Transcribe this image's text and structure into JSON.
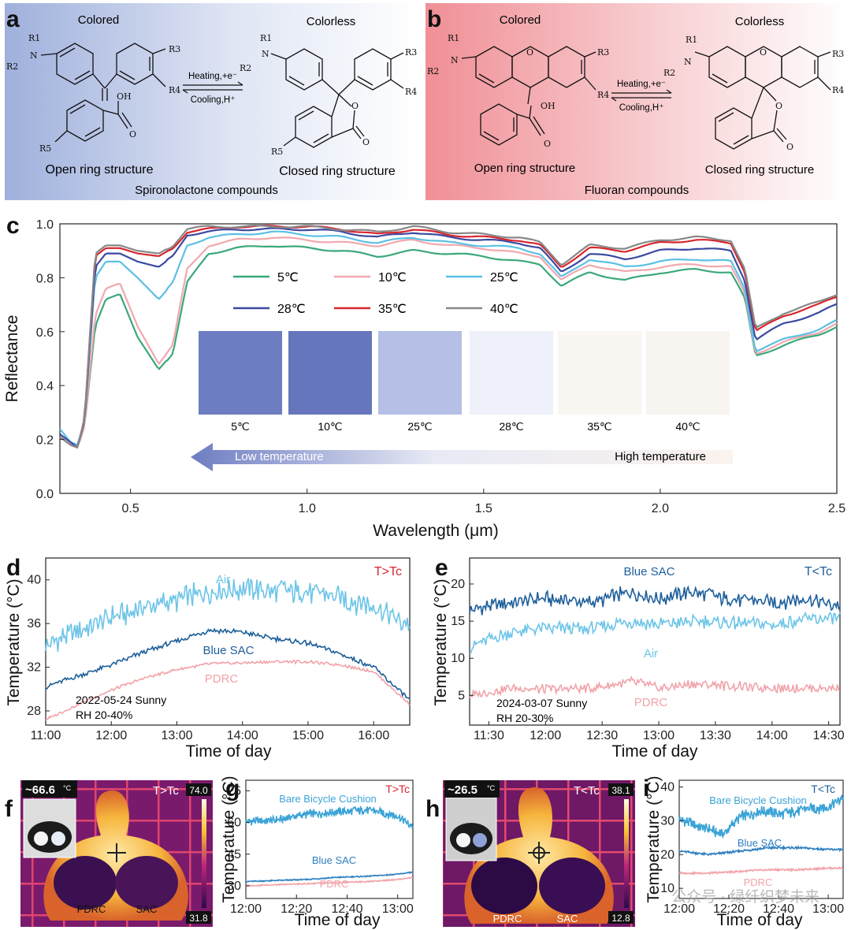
{
  "panel_letters": {
    "a": "a",
    "b": "b",
    "c": "c",
    "d": "d",
    "e": "e",
    "f": "f",
    "g": "g",
    "h": "h",
    "i": "i"
  },
  "panel_a": {
    "title": "Spironolactone compounds",
    "left_state": "Colored",
    "right_state": "Colorless",
    "left_caption": "Open ring structure",
    "right_caption": "Closed ring structure",
    "forward": "Heating,+e⁻",
    "reverse": "Cooling,H⁺",
    "bg_color": "#9fb0dc",
    "atoms": {
      "r1": "R1",
      "r2": "R2",
      "r3": "R3",
      "r4": "R4",
      "r5": "R5",
      "n": "N",
      "oh": "OH",
      "o": "O",
      "o2": "O"
    }
  },
  "panel_b": {
    "title": "Fluoran compounds",
    "left_state": "Colored",
    "right_state": "Colorless",
    "left_caption": "Open ring structure",
    "right_caption": "Closed ring structure",
    "forward": "Heating,+e⁻",
    "reverse": "Cooling,H⁺",
    "bg_color": "#f08f96",
    "atoms": {
      "r1": "R1",
      "r2": "R2",
      "r3": "R3",
      "r4": "R4",
      "n": "N",
      "oh": "OH",
      "o": "O",
      "o2": "O",
      "o3": "O"
    }
  },
  "chart_data": [
    {
      "panel": "c",
      "type": "line",
      "xlabel": "Wavelength (μm)",
      "ylabel": "Reflectance",
      "xlim": [
        0.3,
        2.5
      ],
      "ylim": [
        0.0,
        1.0
      ],
      "xticks": [
        "0.5",
        "1.0",
        "1.5",
        "2.0",
        "2.5"
      ],
      "yticks": [
        "0.0",
        "0.2",
        "0.4",
        "0.6",
        "0.8",
        "1.0"
      ],
      "legend": "inside top, two rows",
      "series": [
        {
          "name": "5℃",
          "color": "#3aa87a",
          "x": [
            0.3,
            0.33,
            0.35,
            0.37,
            0.4,
            0.43,
            0.47,
            0.52,
            0.58,
            0.62,
            0.66,
            0.72,
            0.8,
            0.9,
            1.0,
            1.1,
            1.2,
            1.3,
            1.4,
            1.5,
            1.6,
            1.66,
            1.72,
            1.8,
            1.9,
            2.0,
            2.1,
            2.2,
            2.24,
            2.27,
            2.35,
            2.45,
            2.5
          ],
          "y": [
            0.21,
            0.18,
            0.17,
            0.25,
            0.62,
            0.72,
            0.74,
            0.58,
            0.46,
            0.52,
            0.78,
            0.89,
            0.91,
            0.92,
            0.91,
            0.9,
            0.88,
            0.9,
            0.89,
            0.88,
            0.86,
            0.85,
            0.77,
            0.82,
            0.79,
            0.82,
            0.83,
            0.82,
            0.72,
            0.51,
            0.55,
            0.59,
            0.62
          ]
        },
        {
          "name": "10℃",
          "color": "#f0a8ae",
          "x": [
            0.3,
            0.33,
            0.35,
            0.37,
            0.4,
            0.43,
            0.47,
            0.52,
            0.58,
            0.62,
            0.66,
            0.72,
            0.8,
            0.9,
            1.0,
            1.1,
            1.2,
            1.3,
            1.4,
            1.5,
            1.6,
            1.66,
            1.72,
            1.8,
            1.9,
            2.0,
            2.1,
            2.2,
            2.24,
            2.27,
            2.35,
            2.45,
            2.5
          ],
          "y": [
            0.21,
            0.18,
            0.17,
            0.25,
            0.66,
            0.76,
            0.78,
            0.62,
            0.48,
            0.55,
            0.83,
            0.92,
            0.94,
            0.95,
            0.94,
            0.93,
            0.92,
            0.94,
            0.92,
            0.91,
            0.89,
            0.88,
            0.79,
            0.85,
            0.82,
            0.84,
            0.85,
            0.84,
            0.74,
            0.52,
            0.56,
            0.6,
            0.63
          ]
        },
        {
          "name": "25℃",
          "color": "#5bc0e3",
          "x": [
            0.3,
            0.33,
            0.35,
            0.37,
            0.4,
            0.43,
            0.47,
            0.52,
            0.58,
            0.62,
            0.66,
            0.72,
            0.8,
            0.9,
            1.0,
            1.1,
            1.2,
            1.3,
            1.4,
            1.5,
            1.6,
            1.66,
            1.72,
            1.8,
            1.9,
            2.0,
            2.1,
            2.2,
            2.24,
            2.27,
            2.35,
            2.45,
            2.5
          ],
          "y": [
            0.24,
            0.19,
            0.18,
            0.27,
            0.8,
            0.86,
            0.86,
            0.8,
            0.72,
            0.78,
            0.92,
            0.95,
            0.96,
            0.97,
            0.96,
            0.95,
            0.93,
            0.95,
            0.93,
            0.92,
            0.91,
            0.89,
            0.8,
            0.87,
            0.84,
            0.86,
            0.87,
            0.86,
            0.76,
            0.53,
            0.57,
            0.61,
            0.64
          ]
        },
        {
          "name": "28℃",
          "color": "#3b4aa0",
          "x": [
            0.3,
            0.33,
            0.35,
            0.37,
            0.4,
            0.43,
            0.47,
            0.52,
            0.58,
            0.62,
            0.66,
            0.72,
            0.8,
            0.9,
            1.0,
            1.1,
            1.2,
            1.3,
            1.4,
            1.5,
            1.6,
            1.66,
            1.72,
            1.8,
            1.9,
            2.0,
            2.1,
            2.2,
            2.24,
            2.27,
            2.35,
            2.45,
            2.5
          ],
          "y": [
            0.22,
            0.19,
            0.17,
            0.27,
            0.84,
            0.89,
            0.89,
            0.86,
            0.84,
            0.88,
            0.96,
            0.97,
            0.98,
            0.98,
            0.98,
            0.97,
            0.95,
            0.97,
            0.95,
            0.94,
            0.93,
            0.91,
            0.82,
            0.89,
            0.87,
            0.9,
            0.91,
            0.9,
            0.79,
            0.57,
            0.63,
            0.67,
            0.7
          ]
        },
        {
          "name": "35℃",
          "color": "#d7262e",
          "x": [
            0.3,
            0.33,
            0.35,
            0.37,
            0.4,
            0.43,
            0.47,
            0.52,
            0.58,
            0.62,
            0.66,
            0.72,
            0.8,
            0.9,
            1.0,
            1.1,
            1.2,
            1.3,
            1.4,
            1.5,
            1.6,
            1.66,
            1.72,
            1.8,
            1.9,
            2.0,
            2.1,
            2.2,
            2.24,
            2.27,
            2.35,
            2.45,
            2.5
          ],
          "y": [
            0.21,
            0.18,
            0.17,
            0.28,
            0.88,
            0.91,
            0.91,
            0.89,
            0.88,
            0.91,
            0.97,
            0.98,
            0.99,
            0.99,
            0.99,
            0.98,
            0.96,
            0.98,
            0.96,
            0.95,
            0.94,
            0.92,
            0.84,
            0.91,
            0.9,
            0.93,
            0.94,
            0.93,
            0.82,
            0.6,
            0.66,
            0.7,
            0.73
          ]
        },
        {
          "name": "40℃",
          "color": "#888888",
          "x": [
            0.3,
            0.33,
            0.35,
            0.37,
            0.4,
            0.43,
            0.47,
            0.52,
            0.58,
            0.62,
            0.66,
            0.72,
            0.8,
            0.9,
            1.0,
            1.1,
            1.2,
            1.3,
            1.4,
            1.5,
            1.6,
            1.66,
            1.72,
            1.8,
            1.9,
            2.0,
            2.1,
            2.2,
            2.24,
            2.27,
            2.35,
            2.45,
            2.5
          ],
          "y": [
            0.21,
            0.18,
            0.17,
            0.28,
            0.89,
            0.92,
            0.92,
            0.9,
            0.89,
            0.92,
            0.98,
            0.99,
            0.99,
            0.99,
            0.99,
            0.98,
            0.97,
            0.99,
            0.97,
            0.96,
            0.95,
            0.93,
            0.85,
            0.92,
            0.91,
            0.94,
            0.95,
            0.94,
            0.83,
            0.61,
            0.67,
            0.71,
            0.74
          ]
        }
      ],
      "swatches": [
        {
          "label": "5℃",
          "color": "#6d7dc2"
        },
        {
          "label": "10℃",
          "color": "#6676bd"
        },
        {
          "label": "25℃",
          "color": "#b6bfe6"
        },
        {
          "label": "28℃",
          "color": "#eef0fa"
        },
        {
          "label": "35℃",
          "color": "#faf6f2"
        },
        {
          "label": "40℃",
          "color": "#f8f4f0"
        }
      ],
      "arrow": {
        "low": "Low temperature",
        "high": "High temperature"
      }
    },
    {
      "panel": "d",
      "type": "line",
      "xlabel": "Time of day",
      "ylabel": "Temperature (°C)",
      "xticks": [
        "11:00",
        "12:00",
        "13:00",
        "14:00",
        "15:00",
        "16:00"
      ],
      "yticks": [
        "28",
        "32",
        "36",
        "40"
      ],
      "xlim_hours": [
        11.0,
        16.55
      ],
      "ylim": [
        26.7,
        42.0
      ],
      "tag": "T>Tc",
      "notes": [
        "2022-05-24 Sunny",
        "RH 20-40%"
      ],
      "series": [
        {
          "name": "Air",
          "color": "#6cc4e8",
          "hours": [
            11.0,
            11.5,
            12.0,
            12.5,
            13.0,
            13.5,
            14.0,
            14.5,
            15.0,
            15.5,
            16.0,
            16.55
          ],
          "values": [
            34.0,
            35.3,
            36.5,
            37.4,
            38.2,
            39.0,
            39.2,
            39.0,
            38.9,
            38.3,
            37.6,
            35.8
          ],
          "noise": 1.2
        },
        {
          "name": "Blue SAC",
          "color": "#1d5f9a",
          "hours": [
            11.0,
            11.5,
            12.0,
            12.5,
            13.0,
            13.5,
            14.0,
            14.5,
            15.0,
            15.5,
            16.0,
            16.55
          ],
          "values": [
            30.2,
            31.2,
            32.2,
            33.4,
            34.4,
            35.4,
            35.2,
            34.6,
            34.2,
            33.2,
            32.0,
            29.0
          ],
          "noise": 0.25
        },
        {
          "name": "PDRC",
          "color": "#f1a3a9",
          "hours": [
            11.0,
            11.5,
            12.0,
            12.5,
            13.0,
            13.5,
            14.0,
            14.5,
            15.0,
            15.5,
            16.0,
            16.55
          ],
          "values": [
            27.2,
            28.6,
            29.9,
            31.0,
            31.8,
            32.3,
            32.4,
            32.5,
            32.5,
            32.2,
            31.6,
            28.6
          ],
          "noise": 0.15
        }
      ]
    },
    {
      "panel": "e",
      "type": "line",
      "xlabel": "Time of day",
      "ylabel": "Temperature (°C)",
      "xticks": [
        "11:30",
        "12:00",
        "12:30",
        "13:00",
        "13:30",
        "14:00",
        "14:30"
      ],
      "yticks": [
        "5",
        "10",
        "15",
        "20"
      ],
      "xlim_hours": [
        11.33,
        14.6
      ],
      "ylim": [
        1.0,
        23.5
      ],
      "tag": "T<Tc",
      "notes": [
        "2024-03-07 Sunny",
        "RH 20-30%"
      ],
      "series": [
        {
          "name": "Blue SAC",
          "color": "#1d5f9a",
          "hours": [
            11.33,
            11.7,
            12.0,
            12.4,
            12.75,
            13.0,
            13.3,
            13.6,
            14.0,
            14.3,
            14.6
          ],
          "values": [
            16.5,
            17.5,
            18.0,
            17.5,
            19.0,
            18.0,
            19.0,
            18.0,
            17.5,
            18.0,
            17.0
          ],
          "noise": 1.1
        },
        {
          "name": "Air",
          "color": "#6cc4e8",
          "hours": [
            11.33,
            11.7,
            12.0,
            12.4,
            12.75,
            13.0,
            13.3,
            13.6,
            14.0,
            14.3,
            14.6
          ],
          "values": [
            11.5,
            13.5,
            14.0,
            14.0,
            15.0,
            14.5,
            15.0,
            14.8,
            14.5,
            15.2,
            15.5
          ],
          "noise": 1.0
        },
        {
          "name": "PDRC",
          "color": "#f1a3a9",
          "hours": [
            11.33,
            11.7,
            12.0,
            12.4,
            12.75,
            13.0,
            13.3,
            13.6,
            14.0,
            14.3,
            14.6
          ],
          "values": [
            5.0,
            6.0,
            5.8,
            6.0,
            6.8,
            6.0,
            6.5,
            6.3,
            6.0,
            6.0,
            6.0
          ],
          "noise": 0.7
        }
      ]
    },
    {
      "panel": "g",
      "type": "line",
      "xlabel": "Time of day",
      "ylabel": "Temperature (°C)",
      "xticks": [
        "12:00",
        "12:20",
        "12:40",
        "13:00"
      ],
      "yticks": [
        "30",
        "45",
        "60",
        "75"
      ],
      "xlim_hours": [
        12.0,
        13.1
      ],
      "ylim": [
        24,
        80
      ],
      "tag": "T>Tc",
      "series": [
        {
          "name": "Bare Bicycle Cushion",
          "color": "#3aa3d6",
          "hours": [
            12.0,
            12.2,
            12.4,
            12.6,
            12.8,
            13.0,
            13.1
          ],
          "values": [
            60.5,
            61.0,
            64.0,
            65.0,
            66.0,
            63.0,
            58.0
          ],
          "noise": 2.2
        },
        {
          "name": "Blue SAC",
          "color": "#2e7fc0",
          "hours": [
            12.0,
            12.2,
            12.4,
            12.6,
            12.8,
            13.0,
            13.1
          ],
          "values": [
            32.0,
            32.5,
            33.0,
            34.0,
            34.5,
            35.5,
            36.5
          ],
          "noise": 0.3
        },
        {
          "name": "PDRC",
          "color": "#f1a3a9",
          "hours": [
            12.0,
            12.2,
            12.4,
            12.6,
            12.8,
            13.0,
            13.1
          ],
          "values": [
            30.0,
            30.5,
            31.0,
            31.5,
            32.0,
            33.0,
            34.0
          ],
          "noise": 0.3
        }
      ]
    },
    {
      "panel": "i",
      "type": "line",
      "xlabel": "Time of day",
      "ylabel": "Temperature (°C)",
      "xticks": [
        "12:00",
        "12:20",
        "12:40",
        "13:00"
      ],
      "yticks": [
        "10",
        "20",
        "30",
        "40"
      ],
      "xlim_hours": [
        12.0,
        13.1
      ],
      "ylim": [
        7,
        42
      ],
      "tag": "T<Tc",
      "series": [
        {
          "name": "Bare Bicycle Cushion",
          "color": "#3aa3d6",
          "hours": [
            12.0,
            12.15,
            12.3,
            12.4,
            12.55,
            12.7,
            12.85,
            13.0,
            13.1
          ],
          "values": [
            30.5,
            28.0,
            26.0,
            31.0,
            33.0,
            32.0,
            33.5,
            34.0,
            37.0
          ],
          "noise": 1.8
        },
        {
          "name": "Blue SAC",
          "color": "#2e7fc0",
          "hours": [
            12.0,
            12.2,
            12.4,
            12.6,
            12.8,
            13.0,
            13.1
          ],
          "values": [
            21.0,
            20.0,
            21.0,
            22.0,
            22.0,
            21.5,
            21.5
          ],
          "noise": 0.35
        },
        {
          "name": "PDRC",
          "color": "#f1a3a9",
          "hours": [
            12.0,
            12.2,
            12.4,
            12.6,
            12.8,
            13.0,
            13.1
          ],
          "values": [
            14.5,
            14.5,
            15.0,
            15.5,
            15.5,
            16.0,
            16.0
          ],
          "noise": 0.3
        }
      ]
    }
  ],
  "thermal_f": {
    "reading": "~66.6",
    "unit": "°C",
    "tag": "T>Tc",
    "scale_max": "74.0",
    "scale_min": "31.8",
    "left_label": "PDRC",
    "right_label": "SAC"
  },
  "thermal_h": {
    "reading": "~26.5",
    "unit": "°C",
    "tag": "T<Tc",
    "scale_max": "38.1",
    "scale_min": "12.8",
    "left_label": "PDRC",
    "right_label": "SAC"
  },
  "watermark": "公众号 · 绿纤织梦未来"
}
